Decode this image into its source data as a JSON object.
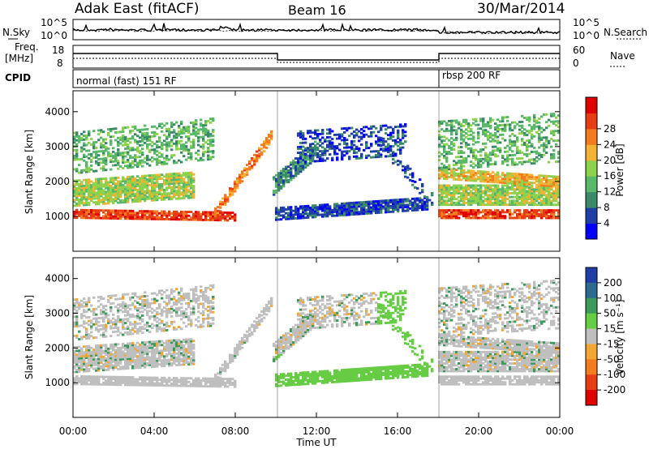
{
  "header": {
    "title": "Adak East (fitACF)",
    "beam": "Beam 16",
    "date": "30/Mar/2014"
  },
  "labels": {
    "nsky": "N.Sky",
    "nsearch": "N.Search",
    "freq_top": "Freq.",
    "freq_unit": "[MHz]",
    "nave": "Nave",
    "cpid": "CPID",
    "cpid_mode_1": "normal (fast) 151 RF",
    "cpid_mode_2": "rbsp 200 RF",
    "nsky_tick_top": "10^5",
    "nsky_tick_bottom": "10^0",
    "nsearch_tick_top": "10^5",
    "nsearch_tick_bottom": "10^0",
    "freq_tick_top": "18",
    "freq_tick_bottom": "8",
    "nave_tick_top": "60",
    "nave_tick_bottom": "0"
  },
  "chart_data": [
    {
      "type": "heatmap",
      "name": "power",
      "ylabel": "Slant Range [km]",
      "yticks": [
        1000,
        2000,
        3000,
        4000
      ],
      "ylim": [
        0,
        4600
      ],
      "colorbar": {
        "label": "Power [dB]",
        "ticks": [
          4,
          8,
          12,
          16,
          20,
          24,
          28
        ],
        "colors": [
          "#0000ff",
          "#1f3fa6",
          "#3a8a6a",
          "#59b86a",
          "#8ed14a",
          "#f2b233",
          "#f27c1f",
          "#e83d14",
          "#e00000"
        ]
      }
    },
    {
      "type": "heatmap",
      "name": "velocity",
      "xlabel": "Time UT",
      "ylabel": "Slant Range [km]",
      "yticks": [
        1000,
        2000,
        3000,
        4000
      ],
      "ylim": [
        0,
        4600
      ],
      "xticks": [
        "00:00",
        "04:00",
        "08:00",
        "12:00",
        "16:00",
        "20:00",
        "00:00"
      ],
      "colorbar": {
        "label": "Velocity [m s⁻¹]",
        "ticks": [
          200,
          100,
          50,
          15,
          -15,
          -50,
          -100,
          -200
        ],
        "colors": [
          "#1f3fa6",
          "#2d6a8f",
          "#3c9a5c",
          "#66cc44",
          "#bfbfbf",
          "#f2a633",
          "#f27c1f",
          "#e83d14",
          "#e00000"
        ]
      }
    }
  ]
}
